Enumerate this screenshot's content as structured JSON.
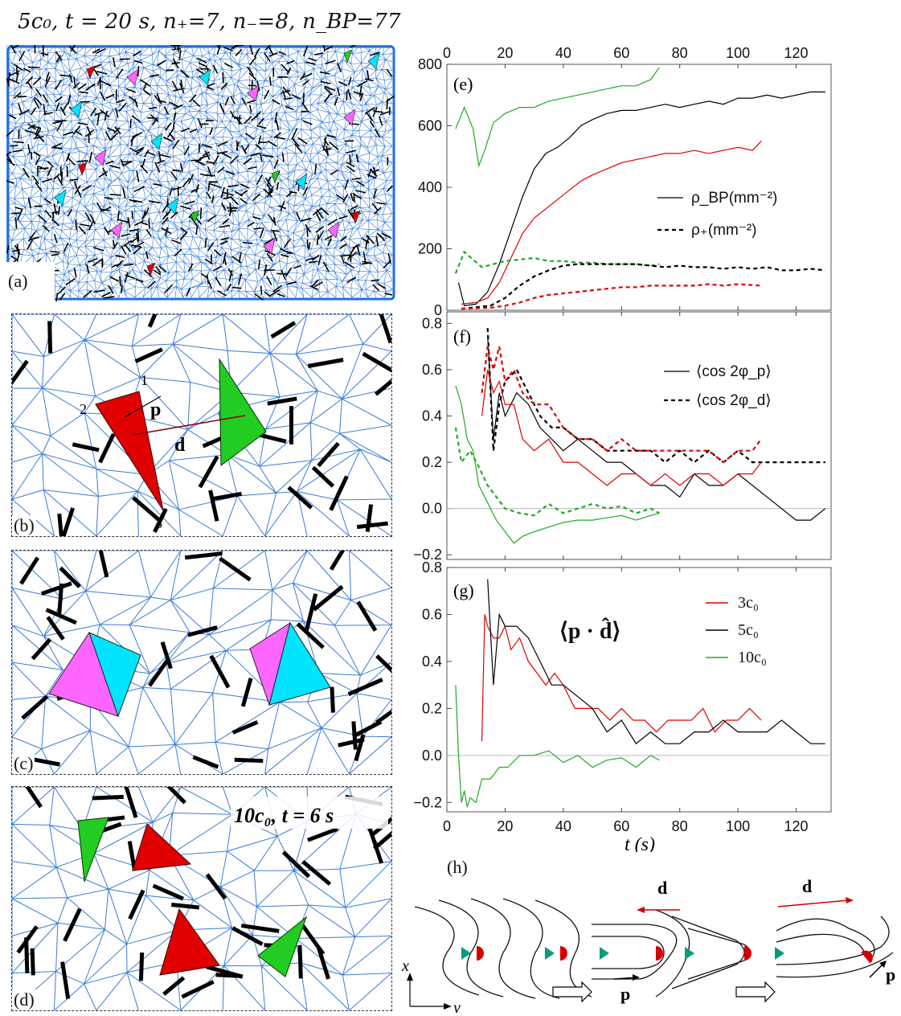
{
  "header": {
    "title": "5c₀, t = 20 s, n₊=7, n₋=8, n_BP=77"
  },
  "panels": {
    "a": "(a)",
    "b": "(b)",
    "c": "(c)",
    "d": "(d)",
    "e": "(e)",
    "f": "(f)",
    "g": "(g)",
    "h": "(h)"
  },
  "panel_b": {
    "vertex1": "1",
    "vertex2": "2",
    "vertex3": "3",
    "p_label": "p",
    "d_label": "d"
  },
  "panel_d": {
    "caption": "10c₀, t = 6 s"
  },
  "panel_h": {
    "x_axis": "x",
    "y_axis": "y",
    "d_label_1": "d",
    "d_label_2": "d",
    "p_label_1": "p",
    "p_label_2": "p"
  },
  "colors": {
    "red": "#e00000",
    "green": "#22aa22",
    "cyan": "#00e5ff",
    "magenta": "#ff66ff",
    "edge_blue": "#3a7bd5",
    "black": "#000000"
  },
  "chart_data": [
    {
      "id": "e",
      "type": "line",
      "x_ticks_top": [
        0,
        20,
        40,
        60,
        80,
        100,
        120
      ],
      "ylim": [
        0,
        800
      ],
      "xlim": [
        0,
        132
      ],
      "y_ticks": [
        0,
        200,
        400,
        600,
        800
      ],
      "legend": [
        {
          "label": "ρ_BP(mm⁻²)",
          "style": "solid"
        },
        {
          "label": "ρ₊(mm⁻²)",
          "style": "dashed"
        }
      ],
      "series": [
        {
          "name": "10c0 ρBP",
          "color": "#22aa22",
          "style": "solid",
          "x": [
            3,
            6,
            9,
            11,
            13,
            16,
            20,
            25,
            30,
            35,
            40,
            45,
            50,
            55,
            60,
            65,
            70,
            73
          ],
          "y": [
            590,
            660,
            590,
            470,
            520,
            610,
            640,
            660,
            660,
            680,
            690,
            700,
            710,
            720,
            730,
            730,
            750,
            790
          ]
        },
        {
          "name": "5c0 ρBP",
          "color": "#000000",
          "style": "solid",
          "x": [
            4,
            6,
            10,
            14,
            18,
            22,
            26,
            30,
            34,
            38,
            42,
            46,
            50,
            55,
            60,
            65,
            70,
            75,
            80,
            85,
            90,
            95,
            100,
            105,
            110,
            115,
            120,
            125,
            130
          ],
          "y": [
            90,
            15,
            20,
            60,
            150,
            260,
            370,
            460,
            510,
            530,
            560,
            600,
            620,
            640,
            650,
            650,
            660,
            670,
            660,
            670,
            680,
            670,
            690,
            690,
            700,
            690,
            700,
            710,
            710
          ]
        },
        {
          "name": "3c0 ρBP",
          "color": "#e00000",
          "style": "solid",
          "x": [
            5,
            10,
            14,
            18,
            22,
            26,
            30,
            34,
            38,
            42,
            46,
            50,
            55,
            60,
            65,
            70,
            75,
            80,
            85,
            90,
            95,
            100,
            105,
            108
          ],
          "y": [
            20,
            25,
            40,
            90,
            170,
            250,
            300,
            330,
            360,
            390,
            420,
            440,
            460,
            480,
            490,
            500,
            510,
            510,
            520,
            510,
            520,
            530,
            520,
            550
          ]
        },
        {
          "name": "10c0 ρ+",
          "color": "#22aa22",
          "style": "dashed",
          "x": [
            3,
            6,
            9,
            12,
            16,
            20,
            25,
            30,
            35,
            40,
            45,
            50,
            55,
            60,
            65,
            70,
            73
          ],
          "y": [
            120,
            190,
            165,
            140,
            150,
            160,
            165,
            170,
            160,
            160,
            155,
            155,
            150,
            150,
            150,
            145,
            150
          ]
        },
        {
          "name": "5c0 ρ+",
          "color": "#000000",
          "style": "dashed",
          "x": [
            5,
            15,
            20,
            25,
            30,
            35,
            40,
            45,
            50,
            55,
            60,
            65,
            70,
            75,
            80,
            85,
            90,
            95,
            100,
            105,
            110,
            115,
            120,
            125,
            130
          ],
          "y": [
            5,
            15,
            40,
            80,
            110,
            130,
            145,
            150,
            150,
            150,
            150,
            150,
            145,
            140,
            145,
            140,
            140,
            135,
            140,
            135,
            140,
            130,
            130,
            135,
            130
          ]
        },
        {
          "name": "3c0 ρ+",
          "color": "#e00000",
          "style": "dashed",
          "x": [
            5,
            15,
            20,
            25,
            30,
            35,
            40,
            45,
            50,
            55,
            60,
            65,
            70,
            75,
            80,
            85,
            90,
            95,
            100,
            108
          ],
          "y": [
            5,
            8,
            15,
            25,
            40,
            50,
            55,
            60,
            65,
            70,
            75,
            75,
            80,
            80,
            80,
            80,
            85,
            80,
            85,
            80
          ]
        }
      ]
    },
    {
      "id": "f",
      "type": "line",
      "ylim": [
        -0.22,
        0.85
      ],
      "xlim": [
        0,
        132
      ],
      "y_ticks": [
        "-0.2",
        "0.0",
        "0.2",
        "0.4",
        "0.6",
        "0.8"
      ],
      "legend": [
        {
          "label": "⟨cos 2φ_p⟩",
          "style": "solid"
        },
        {
          "label": "⟨cos 2φ_d⟩",
          "style": "dashed"
        }
      ],
      "series": [
        {
          "name": "10c0 φp",
          "color": "#22aa22",
          "style": "solid",
          "x": [
            3,
            5,
            7,
            9,
            11,
            13,
            15,
            17,
            20,
            23,
            26,
            30,
            35,
            40,
            45,
            50,
            55,
            60,
            65,
            70,
            73
          ],
          "y": [
            0.53,
            0.45,
            0.3,
            0.25,
            0.1,
            0.05,
            0.0,
            -0.05,
            -0.1,
            -0.15,
            -0.12,
            -0.1,
            -0.08,
            -0.06,
            -0.05,
            -0.05,
            -0.04,
            -0.03,
            -0.05,
            -0.03,
            -0.02
          ]
        },
        {
          "name": "10c0 φd",
          "color": "#22aa22",
          "style": "dashed",
          "x": [
            3,
            5,
            8,
            11,
            14,
            17,
            20,
            25,
            30,
            35,
            40,
            45,
            50,
            55,
            60,
            65,
            70,
            73
          ],
          "y": [
            0.35,
            0.2,
            0.25,
            0.18,
            0.1,
            0.05,
            0.0,
            -0.02,
            -0.03,
            0.02,
            -0.02,
            0.0,
            0.02,
            0.0,
            0.01,
            -0.02,
            0.0,
            -0.02
          ]
        },
        {
          "name": "5c0 φp",
          "color": "#000000",
          "style": "solid",
          "x": [
            14,
            16,
            18,
            20,
            24,
            28,
            32,
            36,
            40,
            45,
            50,
            55,
            60,
            65,
            70,
            75,
            80,
            85,
            90,
            95,
            100,
            105,
            110,
            115,
            120,
            125,
            130
          ],
          "y": [
            0.75,
            0.3,
            0.5,
            0.4,
            0.5,
            0.45,
            0.35,
            0.3,
            0.25,
            0.3,
            0.25,
            0.2,
            0.2,
            0.15,
            0.1,
            0.1,
            0.05,
            0.15,
            0.1,
            0.1,
            0.15,
            0.1,
            0.05,
            0.0,
            -0.05,
            -0.05,
            0.0
          ]
        },
        {
          "name": "5c0 φd",
          "color": "#000000",
          "style": "dashed",
          "x": [
            14,
            16,
            18,
            20,
            24,
            28,
            32,
            36,
            40,
            45,
            50,
            55,
            60,
            65,
            70,
            75,
            80,
            85,
            90,
            95,
            100,
            105,
            110,
            115,
            120,
            125,
            130
          ],
          "y": [
            0.78,
            0.25,
            0.45,
            0.55,
            0.6,
            0.5,
            0.4,
            0.35,
            0.35,
            0.3,
            0.3,
            0.25,
            0.25,
            0.25,
            0.25,
            0.2,
            0.25,
            0.2,
            0.25,
            0.2,
            0.25,
            0.2,
            0.2,
            0.2,
            0.2,
            0.2,
            0.2
          ]
        },
        {
          "name": "3c0 φp",
          "color": "#e00000",
          "style": "solid",
          "x": [
            12,
            14,
            16,
            18,
            20,
            23,
            26,
            30,
            35,
            40,
            45,
            50,
            55,
            60,
            65,
            70,
            75,
            80,
            85,
            90,
            95,
            100,
            105,
            108
          ],
          "y": [
            0.4,
            0.6,
            0.5,
            0.55,
            0.45,
            0.45,
            0.3,
            0.25,
            0.3,
            0.2,
            0.2,
            0.15,
            0.1,
            0.15,
            0.15,
            0.1,
            0.15,
            0.1,
            0.15,
            0.15,
            0.1,
            0.15,
            0.15,
            0.2
          ]
        },
        {
          "name": "3c0 φd",
          "color": "#e00000",
          "style": "dashed",
          "x": [
            12,
            14,
            16,
            18,
            20,
            23,
            26,
            30,
            35,
            40,
            45,
            50,
            55,
            60,
            65,
            70,
            75,
            80,
            85,
            90,
            95,
            100,
            105,
            108
          ],
          "y": [
            0.5,
            0.7,
            0.6,
            0.7,
            0.55,
            0.6,
            0.5,
            0.45,
            0.45,
            0.35,
            0.3,
            0.3,
            0.25,
            0.3,
            0.25,
            0.25,
            0.25,
            0.25,
            0.25,
            0.25,
            0.2,
            0.25,
            0.25,
            0.3
          ]
        }
      ]
    },
    {
      "id": "g",
      "type": "line",
      "ylim": [
        -0.24,
        0.8
      ],
      "xlim": [
        0,
        132
      ],
      "x_ticks": [
        0,
        20,
        40,
        60,
        80,
        100,
        120
      ],
      "y_ticks": [
        "-0.2",
        "0.0",
        "0.2",
        "0.4",
        "0.6",
        "0.8"
      ],
      "xlabel": "t (s)",
      "annotation": "⟨p · d̂⟩",
      "legend": [
        {
          "label": "3c₀",
          "color": "#e00000"
        },
        {
          "label": "5c₀",
          "color": "#000000"
        },
        {
          "label": "10c₀",
          "color": "#22aa22"
        }
      ],
      "series": [
        {
          "name": "3c0",
          "color": "#e00000",
          "style": "solid",
          "x": [
            12,
            13,
            14,
            16,
            18,
            20,
            22,
            25,
            28,
            31,
            34,
            37,
            40,
            44,
            48,
            52,
            56,
            60,
            64,
            68,
            72,
            76,
            80,
            84,
            88,
            92,
            96,
            100,
            104,
            108
          ],
          "y": [
            0.06,
            0.6,
            0.55,
            0.5,
            0.5,
            0.55,
            0.45,
            0.5,
            0.4,
            0.35,
            0.3,
            0.35,
            0.3,
            0.2,
            0.2,
            0.2,
            0.15,
            0.2,
            0.15,
            0.15,
            0.1,
            0.15,
            0.15,
            0.15,
            0.2,
            0.1,
            0.15,
            0.15,
            0.2,
            0.15
          ]
        },
        {
          "name": "5c0",
          "color": "#000000",
          "style": "solid",
          "x": [
            14,
            16,
            18,
            20,
            24,
            28,
            32,
            36,
            40,
            45,
            50,
            55,
            60,
            65,
            70,
            75,
            80,
            85,
            90,
            95,
            100,
            105,
            110,
            115,
            120,
            125,
            130
          ],
          "y": [
            0.75,
            0.3,
            0.6,
            0.55,
            0.55,
            0.5,
            0.4,
            0.3,
            0.3,
            0.25,
            0.2,
            0.1,
            0.15,
            0.05,
            0.1,
            0.05,
            0.05,
            0.1,
            0.1,
            0.15,
            0.1,
            0.1,
            0.1,
            0.15,
            0.1,
            0.05,
            0.05
          ]
        },
        {
          "name": "10c0",
          "color": "#22aa22",
          "style": "solid",
          "x": [
            3,
            4,
            5,
            6,
            7,
            8,
            10,
            12,
            15,
            18,
            21,
            25,
            30,
            35,
            40,
            45,
            50,
            55,
            60,
            65,
            70,
            73
          ],
          "y": [
            0.3,
            0.0,
            -0.2,
            -0.15,
            -0.22,
            -0.18,
            -0.2,
            -0.1,
            -0.1,
            -0.05,
            -0.05,
            0.0,
            0.0,
            0.02,
            -0.03,
            0.0,
            -0.05,
            -0.02,
            -0.01,
            -0.05,
            0.0,
            -0.02
          ]
        }
      ]
    }
  ]
}
